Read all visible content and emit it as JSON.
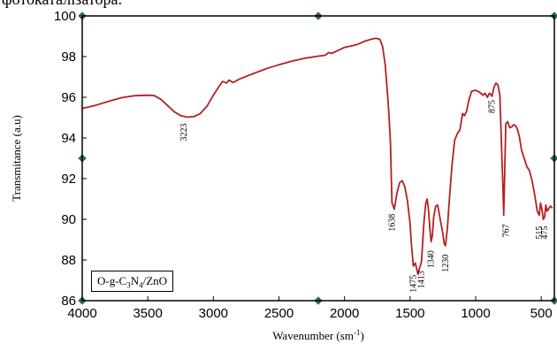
{
  "header_fragment": "фотокаталізатора.",
  "colors": {
    "series": "#b22222",
    "axis": "#000000",
    "marker": "#2e6b5a"
  },
  "legend": {
    "prefix": "O-g-C",
    "sub1": "3",
    "mid": "N",
    "sub2": "4",
    "suffix": "/ZnO"
  },
  "chart_data": {
    "type": "line",
    "title": "",
    "xlabel": "Wavenumber (sm",
    "xlabel_sup": "-1",
    "xlabel_end": ")",
    "ylabel": "Transmitance (a.u)",
    "xlim": [
      4000,
      400
    ],
    "ylim": [
      86,
      100
    ],
    "x_reversed": true,
    "x_ticks": [
      4000,
      3500,
      3000,
      2500,
      2000,
      1500,
      1000,
      500
    ],
    "x_tick_labels": [
      "4000",
      "3500",
      "3000",
      "2500",
      "2000",
      "1500",
      "1000",
      "500"
    ],
    "y_ticks": [
      86,
      88,
      90,
      92,
      94,
      96,
      98,
      100
    ],
    "y_tick_labels": [
      "86",
      "88",
      "90",
      "92",
      "94",
      "96",
      "98",
      "100"
    ],
    "grid": false,
    "legend_position": "bottom-left",
    "series": [
      {
        "name": "O-g-C3N4/ZnO",
        "points": [
          [
            4000,
            95.45
          ],
          [
            3900,
            95.6
          ],
          [
            3800,
            95.8
          ],
          [
            3700,
            95.98
          ],
          [
            3600,
            96.08
          ],
          [
            3500,
            96.1
          ],
          [
            3450,
            96.08
          ],
          [
            3400,
            95.9
          ],
          [
            3350,
            95.6
          ],
          [
            3300,
            95.3
          ],
          [
            3250,
            95.1
          ],
          [
            3200,
            95.02
          ],
          [
            3150,
            95.05
          ],
          [
            3100,
            95.2
          ],
          [
            3050,
            95.55
          ],
          [
            3000,
            96.1
          ],
          [
            2960,
            96.5
          ],
          [
            2930,
            96.78
          ],
          [
            2900,
            96.7
          ],
          [
            2880,
            96.85
          ],
          [
            2850,
            96.72
          ],
          [
            2800,
            96.9
          ],
          [
            2700,
            97.15
          ],
          [
            2600,
            97.4
          ],
          [
            2500,
            97.6
          ],
          [
            2400,
            97.78
          ],
          [
            2300,
            97.92
          ],
          [
            2200,
            98.02
          ],
          [
            2150,
            98.06
          ],
          [
            2120,
            98.2
          ],
          [
            2100,
            98.15
          ],
          [
            2050,
            98.3
          ],
          [
            2000,
            98.45
          ],
          [
            1950,
            98.52
          ],
          [
            1900,
            98.6
          ],
          [
            1850,
            98.75
          ],
          [
            1800,
            98.85
          ],
          [
            1760,
            98.9
          ],
          [
            1730,
            98.85
          ],
          [
            1710,
            98.5
          ],
          [
            1690,
            97.6
          ],
          [
            1670,
            96.0
          ],
          [
            1660,
            95.0
          ],
          [
            1650,
            93.8
          ],
          [
            1640,
            91.2
          ],
          [
            1638,
            90.8
          ],
          [
            1620,
            90.5
          ],
          [
            1600,
            91.3
          ],
          [
            1580,
            91.8
          ],
          [
            1560,
            91.9
          ],
          [
            1540,
            91.6
          ],
          [
            1520,
            90.9
          ],
          [
            1500,
            89.8
          ],
          [
            1490,
            88.8
          ],
          [
            1475,
            87.7
          ],
          [
            1460,
            87.85
          ],
          [
            1440,
            87.3
          ],
          [
            1430,
            87.55
          ],
          [
            1413,
            87.9
          ],
          [
            1395,
            89.8
          ],
          [
            1380,
            90.8
          ],
          [
            1370,
            91.0
          ],
          [
            1360,
            90.5
          ],
          [
            1350,
            89.6
          ],
          [
            1340,
            88.9
          ],
          [
            1330,
            89.2
          ],
          [
            1320,
            90.1
          ],
          [
            1305,
            90.65
          ],
          [
            1290,
            90.7
          ],
          [
            1270,
            90.0
          ],
          [
            1250,
            89.3
          ],
          [
            1240,
            88.8
          ],
          [
            1230,
            88.7
          ],
          [
            1215,
            89.6
          ],
          [
            1200,
            91.0
          ],
          [
            1180,
            92.7
          ],
          [
            1160,
            93.9
          ],
          [
            1140,
            94.2
          ],
          [
            1120,
            94.4
          ],
          [
            1100,
            95.2
          ],
          [
            1085,
            95.1
          ],
          [
            1070,
            95.3
          ],
          [
            1050,
            95.9
          ],
          [
            1030,
            96.3
          ],
          [
            1000,
            96.35
          ],
          [
            970,
            96.25
          ],
          [
            945,
            96.1
          ],
          [
            930,
            96.2
          ],
          [
            910,
            96.0
          ],
          [
            895,
            96.2
          ],
          [
            880,
            96.1
          ],
          [
            875,
            96.05
          ],
          [
            860,
            96.5
          ],
          [
            845,
            96.7
          ],
          [
            830,
            96.6
          ],
          [
            815,
            96.1
          ],
          [
            800,
            93.0
          ],
          [
            792,
            91.5
          ],
          [
            786,
            90.2
          ],
          [
            780,
            91.8
          ],
          [
            770,
            94.7
          ],
          [
            755,
            94.8
          ],
          [
            740,
            94.5
          ],
          [
            725,
            94.55
          ],
          [
            710,
            94.65
          ],
          [
            695,
            94.6
          ],
          [
            680,
            94.4
          ],
          [
            665,
            94.0
          ],
          [
            650,
            93.4
          ],
          [
            630,
            93.0
          ],
          [
            610,
            92.6
          ],
          [
            590,
            92.4
          ],
          [
            570,
            91.9
          ],
          [
            550,
            91.2
          ],
          [
            530,
            90.4
          ],
          [
            515,
            90.2
          ],
          [
            505,
            90.8
          ],
          [
            495,
            90.5
          ],
          [
            485,
            90.0
          ],
          [
            475,
            90.1
          ],
          [
            465,
            90.7
          ],
          [
            455,
            90.4
          ],
          [
            445,
            90.5
          ],
          [
            430,
            90.65
          ],
          [
            415,
            90.55
          ]
        ]
      }
    ],
    "annotations": [
      {
        "label": "3223",
        "x": 3223,
        "y": 94.85
      },
      {
        "label": "1638",
        "x": 1638,
        "y": 90.4
      },
      {
        "label": "1475",
        "x": 1475,
        "y": 87.4
      },
      {
        "label": "1413",
        "x": 1413,
        "y": 87.6
      },
      {
        "label": "1340",
        "x": 1340,
        "y": 88.6
      },
      {
        "label": "1230",
        "x": 1230,
        "y": 88.4
      },
      {
        "label": "875",
        "x": 875,
        "y": 96.0
      },
      {
        "label": "767",
        "x": 767,
        "y": 89.9
      },
      {
        "label": "515",
        "x": 515,
        "y": 89.8
      },
      {
        "label": "475",
        "x": 475,
        "y": 89.8
      }
    ]
  }
}
